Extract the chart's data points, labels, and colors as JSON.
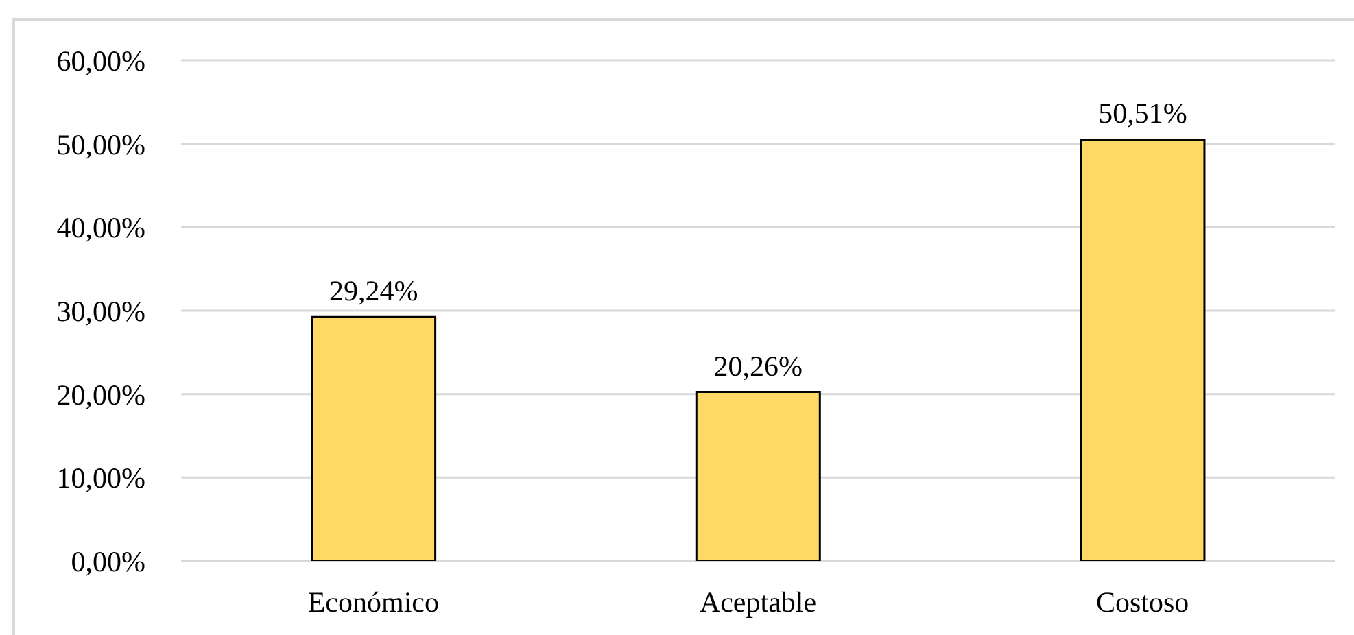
{
  "chart_data": {
    "type": "bar",
    "categories": [
      "Económico",
      "Aceptable",
      "Costoso"
    ],
    "values": [
      29.24,
      20.26,
      50.51
    ],
    "color": "#ffd966",
    "value_labels": [
      "29,24%",
      "20,26%",
      "50,51%"
    ],
    "ylim": [
      0,
      60
    ],
    "yticks": [
      {
        "value": 0,
        "label": "0,00%"
      },
      {
        "value": 10,
        "label": "10,00%"
      },
      {
        "value": 20,
        "label": "20,00%"
      },
      {
        "value": 30,
        "label": "30,00%"
      },
      {
        "value": 40,
        "label": "40,00%"
      },
      {
        "value": 50,
        "label": "50,00%"
      },
      {
        "value": 60,
        "label": "60,00%"
      }
    ],
    "grid": "y"
  }
}
